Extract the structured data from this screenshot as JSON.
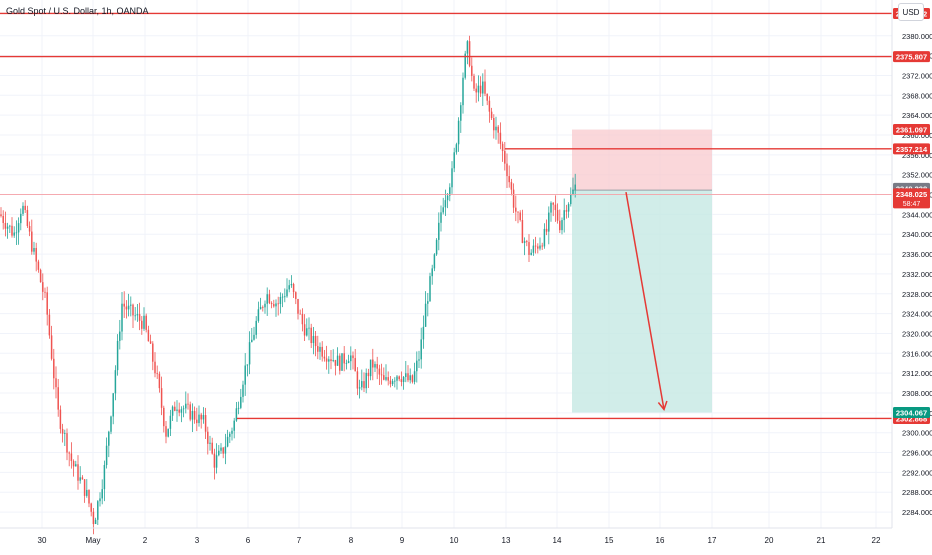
{
  "header": {
    "title": "Gold Spot / U.S. Dollar, 1h, OANDA",
    "currency": "USD"
  },
  "colors": {
    "up": "#26a69a",
    "down": "#ef5350",
    "level_line": "#e53935",
    "stop_zone": "#f8c9cd",
    "target_zone": "#c6e9e3",
    "arrow": "#e53935",
    "grid": "#f0f3fa"
  },
  "chart_data": {
    "type": "candlestick",
    "title": "Gold Spot / U.S. Dollar, 1h, OANDA",
    "ylim": [
      2282,
      2386
    ],
    "y_ticks": [
      "2284.000",
      "2288.000",
      "2292.000",
      "2296.000",
      "2300.000",
      "2304.000",
      "2308.000",
      "2312.000",
      "2316.000",
      "2320.000",
      "2324.000",
      "2328.000",
      "2332.000",
      "2336.000",
      "2340.000",
      "2344.000",
      "2348.000",
      "2352.000",
      "2356.000",
      "2360.000",
      "2364.000",
      "2368.000",
      "2372.000",
      "2376.000",
      "2380.000"
    ],
    "x_ticks": [
      "30",
      "May",
      "2",
      "3",
      "6",
      "7",
      "8",
      "9",
      "10",
      "13",
      "14",
      "15",
      "16",
      "17",
      "20",
      "21",
      "22"
    ],
    "price_path": [
      [
        0,
        2344
      ],
      [
        14,
        2340
      ],
      [
        22,
        2346
      ],
      [
        34,
        2336
      ],
      [
        46,
        2326
      ],
      [
        58,
        2304
      ],
      [
        72,
        2294
      ],
      [
        86,
        2288
      ],
      [
        94,
        2282
      ],
      [
        104,
        2292
      ],
      [
        114,
        2310
      ],
      [
        122,
        2326
      ],
      [
        132,
        2324
      ],
      [
        144,
        2322
      ],
      [
        156,
        2312
      ],
      [
        166,
        2300
      ],
      [
        176,
        2306
      ],
      [
        190,
        2304
      ],
      [
        204,
        2302
      ],
      [
        214,
        2294
      ],
      [
        222,
        2296
      ],
      [
        234,
        2302
      ],
      [
        244,
        2312
      ],
      [
        256,
        2322
      ],
      [
        266,
        2328
      ],
      [
        278,
        2326
      ],
      [
        290,
        2330
      ],
      [
        302,
        2322
      ],
      [
        314,
        2318
      ],
      [
        326,
        2316
      ],
      [
        340,
        2314
      ],
      [
        350,
        2316
      ],
      [
        360,
        2308
      ],
      [
        372,
        2314
      ],
      [
        384,
        2310
      ],
      [
        398,
        2312
      ],
      [
        412,
        2310
      ],
      [
        420,
        2316
      ],
      [
        426,
        2326
      ],
      [
        434,
        2334
      ],
      [
        442,
        2346
      ],
      [
        452,
        2352
      ],
      [
        458,
        2362
      ],
      [
        464,
        2374
      ],
      [
        468,
        2378
      ],
      [
        474,
        2368
      ],
      [
        482,
        2370
      ],
      [
        490,
        2364
      ],
      [
        498,
        2360
      ],
      [
        506,
        2354
      ],
      [
        514,
        2346
      ],
      [
        522,
        2340
      ],
      [
        530,
        2336
      ],
      [
        538,
        2338
      ],
      [
        546,
        2340
      ],
      [
        552,
        2346
      ],
      [
        560,
        2342
      ],
      [
        566,
        2346
      ],
      [
        572,
        2348
      ],
      [
        576,
        2350
      ]
    ],
    "horizontal_levels": [
      {
        "price": 2384.492,
        "label": "2384.492",
        "from_x": 0
      },
      {
        "price": 2375.807,
        "label": "2375.807",
        "from_x": 0
      },
      {
        "price": 2357.214,
        "label": "2357.214",
        "from_x": 505
      },
      {
        "price": 2302.868,
        "label": "2302.868",
        "from_x": 237
      }
    ],
    "current_price": {
      "value": 2349.238,
      "label": "2349.238"
    },
    "cursor_price": {
      "value": 2348.025,
      "label": "2348.025",
      "countdown": "58:47"
    },
    "short_position": {
      "entry": 2348.9,
      "stop": 2361.097,
      "stop_label": "2361.097",
      "target": 2304.067,
      "target_label": "2304.067"
    },
    "grid": true
  }
}
